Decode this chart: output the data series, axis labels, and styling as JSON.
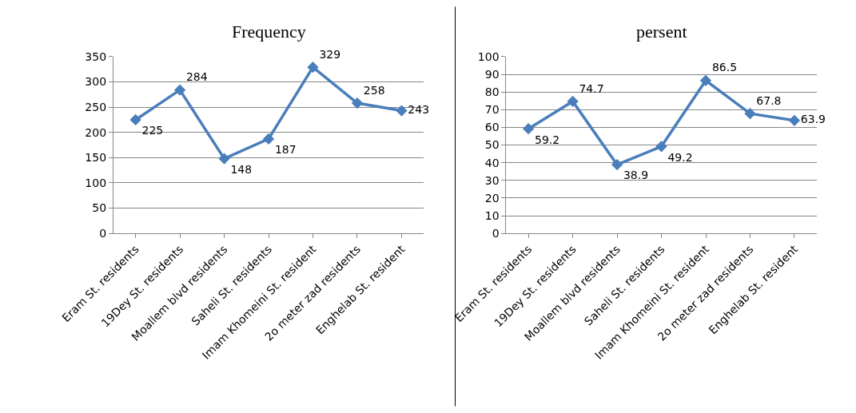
{
  "chart_data": [
    {
      "type": "line",
      "title": "Frequency",
      "categories": [
        "Eram St. residents",
        "19Dey St. residents",
        "Moallem blvd residents",
        "Saheli St. residents",
        "Imam Khomeini St. resident",
        "2o meter zad residents",
        "Enghelab St. resident"
      ],
      "series": [
        {
          "color": "#4a7ebb",
          "values": [
            225,
            284,
            148,
            187,
            329,
            258,
            243
          ]
        }
      ],
      "ylim": [
        0,
        350
      ],
      "yticks": [
        0,
        50,
        100,
        150,
        200,
        250,
        300,
        350
      ],
      "grid": "y",
      "marker": "diamond",
      "line_style": "solid",
      "data_labels": true
    },
    {
      "type": "line",
      "title": "persent",
      "categories": [
        "Eram St. residents",
        "19Dey St. residents",
        "Moallem blvd residents",
        "Saheli St. residents",
        "Imam Khomeini St. resident",
        "2o meter zad residents",
        "Enghelab St. resident"
      ],
      "series": [
        {
          "color": "#4a7ebb",
          "values": [
            59.2,
            74.7,
            38.9,
            49.2,
            86.5,
            67.8,
            63.9
          ]
        }
      ],
      "ylim": [
        0,
        100
      ],
      "yticks": [
        0,
        10,
        20,
        30,
        40,
        50,
        60,
        70,
        80,
        90,
        100
      ],
      "grid": "y",
      "marker": "diamond",
      "line_style": "solid",
      "data_labels": true
    }
  ]
}
